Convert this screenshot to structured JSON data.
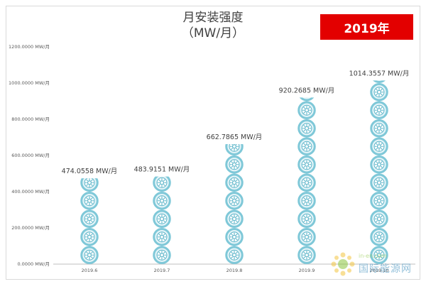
{
  "badge": "2019年",
  "watermark": {
    "url": "in-en.com",
    "name": "国际能源网"
  },
  "chart_data": {
    "type": "bar",
    "title": "月安装强度",
    "subtitle": "（MW/月）",
    "categories": [
      "2019.6",
      "2019.7",
      "2019.8",
      "2019.9",
      "2019.10"
    ],
    "values": [
      474.0558,
      483.9151,
      662.7865,
      920.2685,
      1014.3557
    ],
    "data_labels": [
      "474.0558 MW/月",
      "483.9151 MW/月",
      "662.7865 MW/月",
      "920.2685 MW/月",
      "1014.3557 MW/月"
    ],
    "y_ticks": [
      0,
      200,
      400,
      600,
      800,
      1000,
      1200
    ],
    "y_tick_labels": [
      "0.0000 MW/月",
      "200.0000 MW/月",
      "400.0000 MW/月",
      "600.0000 MW/月",
      "800.0000 MW/月",
      "1000.0000 MW/月",
      "1200.0000 MW/月"
    ],
    "ylim": [
      0,
      1200
    ],
    "unit_per_icon": 100,
    "grid": false,
    "marker": "sun-pictogram-icon",
    "colors": {
      "ring": "#7fc8d8",
      "fill": "#e4f4f8",
      "rays": "#5ab4c8",
      "axis": "#bfbfbf",
      "text": "#595959"
    }
  }
}
